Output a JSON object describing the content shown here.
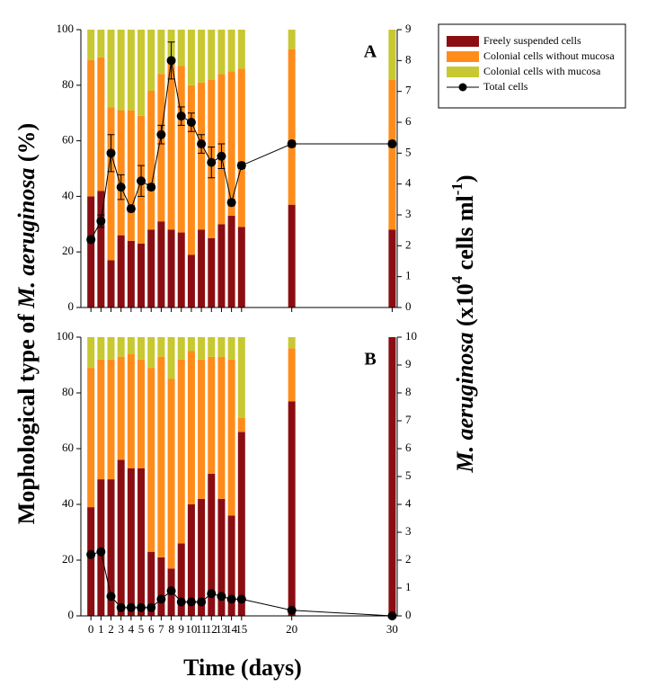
{
  "ylabel": [
    "Mophological type of ",
    "M. aeruginosa",
    " (%)"
  ],
  "y2label": [
    "M. aeruginosa",
    " (x10",
    "4",
    " cells ml",
    "-1",
    ")"
  ],
  "xlabel": "Time (days)",
  "chart_data": [
    {
      "type": "stacked_bar_line",
      "annotation": "A",
      "x": [
        0,
        1,
        2,
        3,
        4,
        5,
        6,
        7,
        8,
        9,
        10,
        11,
        12,
        13,
        14,
        15,
        20,
        30
      ],
      "xlim": [
        -1,
        30.5
      ],
      "xticks": [
        0,
        1,
        2,
        3,
        4,
        5,
        6,
        7,
        8,
        9,
        10,
        11,
        12,
        13,
        14,
        15,
        20,
        30
      ],
      "ylim": [
        0,
        100
      ],
      "yticks": [
        0,
        20,
        40,
        60,
        80,
        100
      ],
      "y2lim": [
        0,
        9
      ],
      "y2ticks": [
        0,
        1,
        2,
        3,
        4,
        5,
        6,
        7,
        8,
        9
      ],
      "series": [
        {
          "name": "Freely suspended cells",
          "color": "#8b0d12",
          "values": [
            40,
            42,
            17,
            26,
            24,
            23,
            28,
            31,
            28,
            27,
            19,
            28,
            25,
            30,
            33,
            29,
            37,
            28
          ]
        },
        {
          "name": "Colonial cells without mucosa",
          "color": "#ff8c1a",
          "values": [
            49,
            48,
            55,
            45,
            47,
            46,
            50,
            53,
            62,
            60,
            61,
            53,
            57,
            54,
            52,
            57,
            56,
            54
          ]
        },
        {
          "name": "Colonial cells with mucosa",
          "color": "#c8c832",
          "values": [
            11,
            10,
            28,
            29,
            29,
            31,
            22,
            16,
            10,
            13,
            20,
            19,
            18,
            16,
            15,
            14,
            7,
            18
          ]
        },
        {
          "name": "Total cells",
          "color": "#000000",
          "axis": "y2",
          "values": [
            2.2,
            2.8,
            5.0,
            3.9,
            3.2,
            4.1,
            3.9,
            5.6,
            8.0,
            6.2,
            6.0,
            5.3,
            4.7,
            4.9,
            3.4,
            4.6,
            5.3,
            5.3
          ],
          "errors": [
            0.1,
            0.2,
            0.6,
            0.4,
            0.1,
            0.5,
            0.1,
            0.3,
            0.6,
            0.3,
            0.3,
            0.3,
            0.5,
            0.4,
            0.1,
            0.1,
            0.1,
            0.1
          ]
        }
      ]
    },
    {
      "type": "stacked_bar_line",
      "annotation": "B",
      "x": [
        0,
        1,
        2,
        3,
        4,
        5,
        6,
        7,
        8,
        9,
        10,
        11,
        12,
        13,
        14,
        15,
        20,
        30
      ],
      "xlim": [
        -1,
        30.5
      ],
      "xticks": [
        0,
        1,
        2,
        3,
        4,
        5,
        6,
        7,
        8,
        9,
        10,
        11,
        12,
        13,
        14,
        15,
        20,
        30
      ],
      "ylim": [
        0,
        100
      ],
      "yticks": [
        0,
        20,
        40,
        60,
        80,
        100
      ],
      "y2lim": [
        0,
        10
      ],
      "y2ticks": [
        0,
        1,
        2,
        3,
        4,
        5,
        6,
        7,
        8,
        9,
        10
      ],
      "series": [
        {
          "color": "#8b0d12",
          "values": [
            39,
            49,
            49,
            56,
            53,
            53,
            23,
            21,
            17,
            26,
            40,
            42,
            51,
            42,
            36,
            66,
            77,
            100
          ]
        },
        {
          "color": "#ff8c1a",
          "values": [
            50,
            43,
            43,
            37,
            41,
            39,
            66,
            72,
            68,
            66,
            55,
            50,
            42,
            51,
            56,
            5,
            19,
            0
          ]
        },
        {
          "color": "#c8c832",
          "values": [
            11,
            8,
            8,
            7,
            6,
            8,
            11,
            7,
            15,
            8,
            5,
            8,
            7,
            7,
            8,
            29,
            4,
            0
          ]
        },
        {
          "color": "#000000",
          "axis": "y2",
          "values": [
            2.2,
            2.3,
            0.7,
            0.3,
            0.3,
            0.3,
            0.3,
            0.6,
            0.9,
            0.5,
            0.5,
            0.5,
            0.8,
            0.7,
            0.6,
            0.6,
            0.2,
            0
          ]
        }
      ]
    }
  ]
}
